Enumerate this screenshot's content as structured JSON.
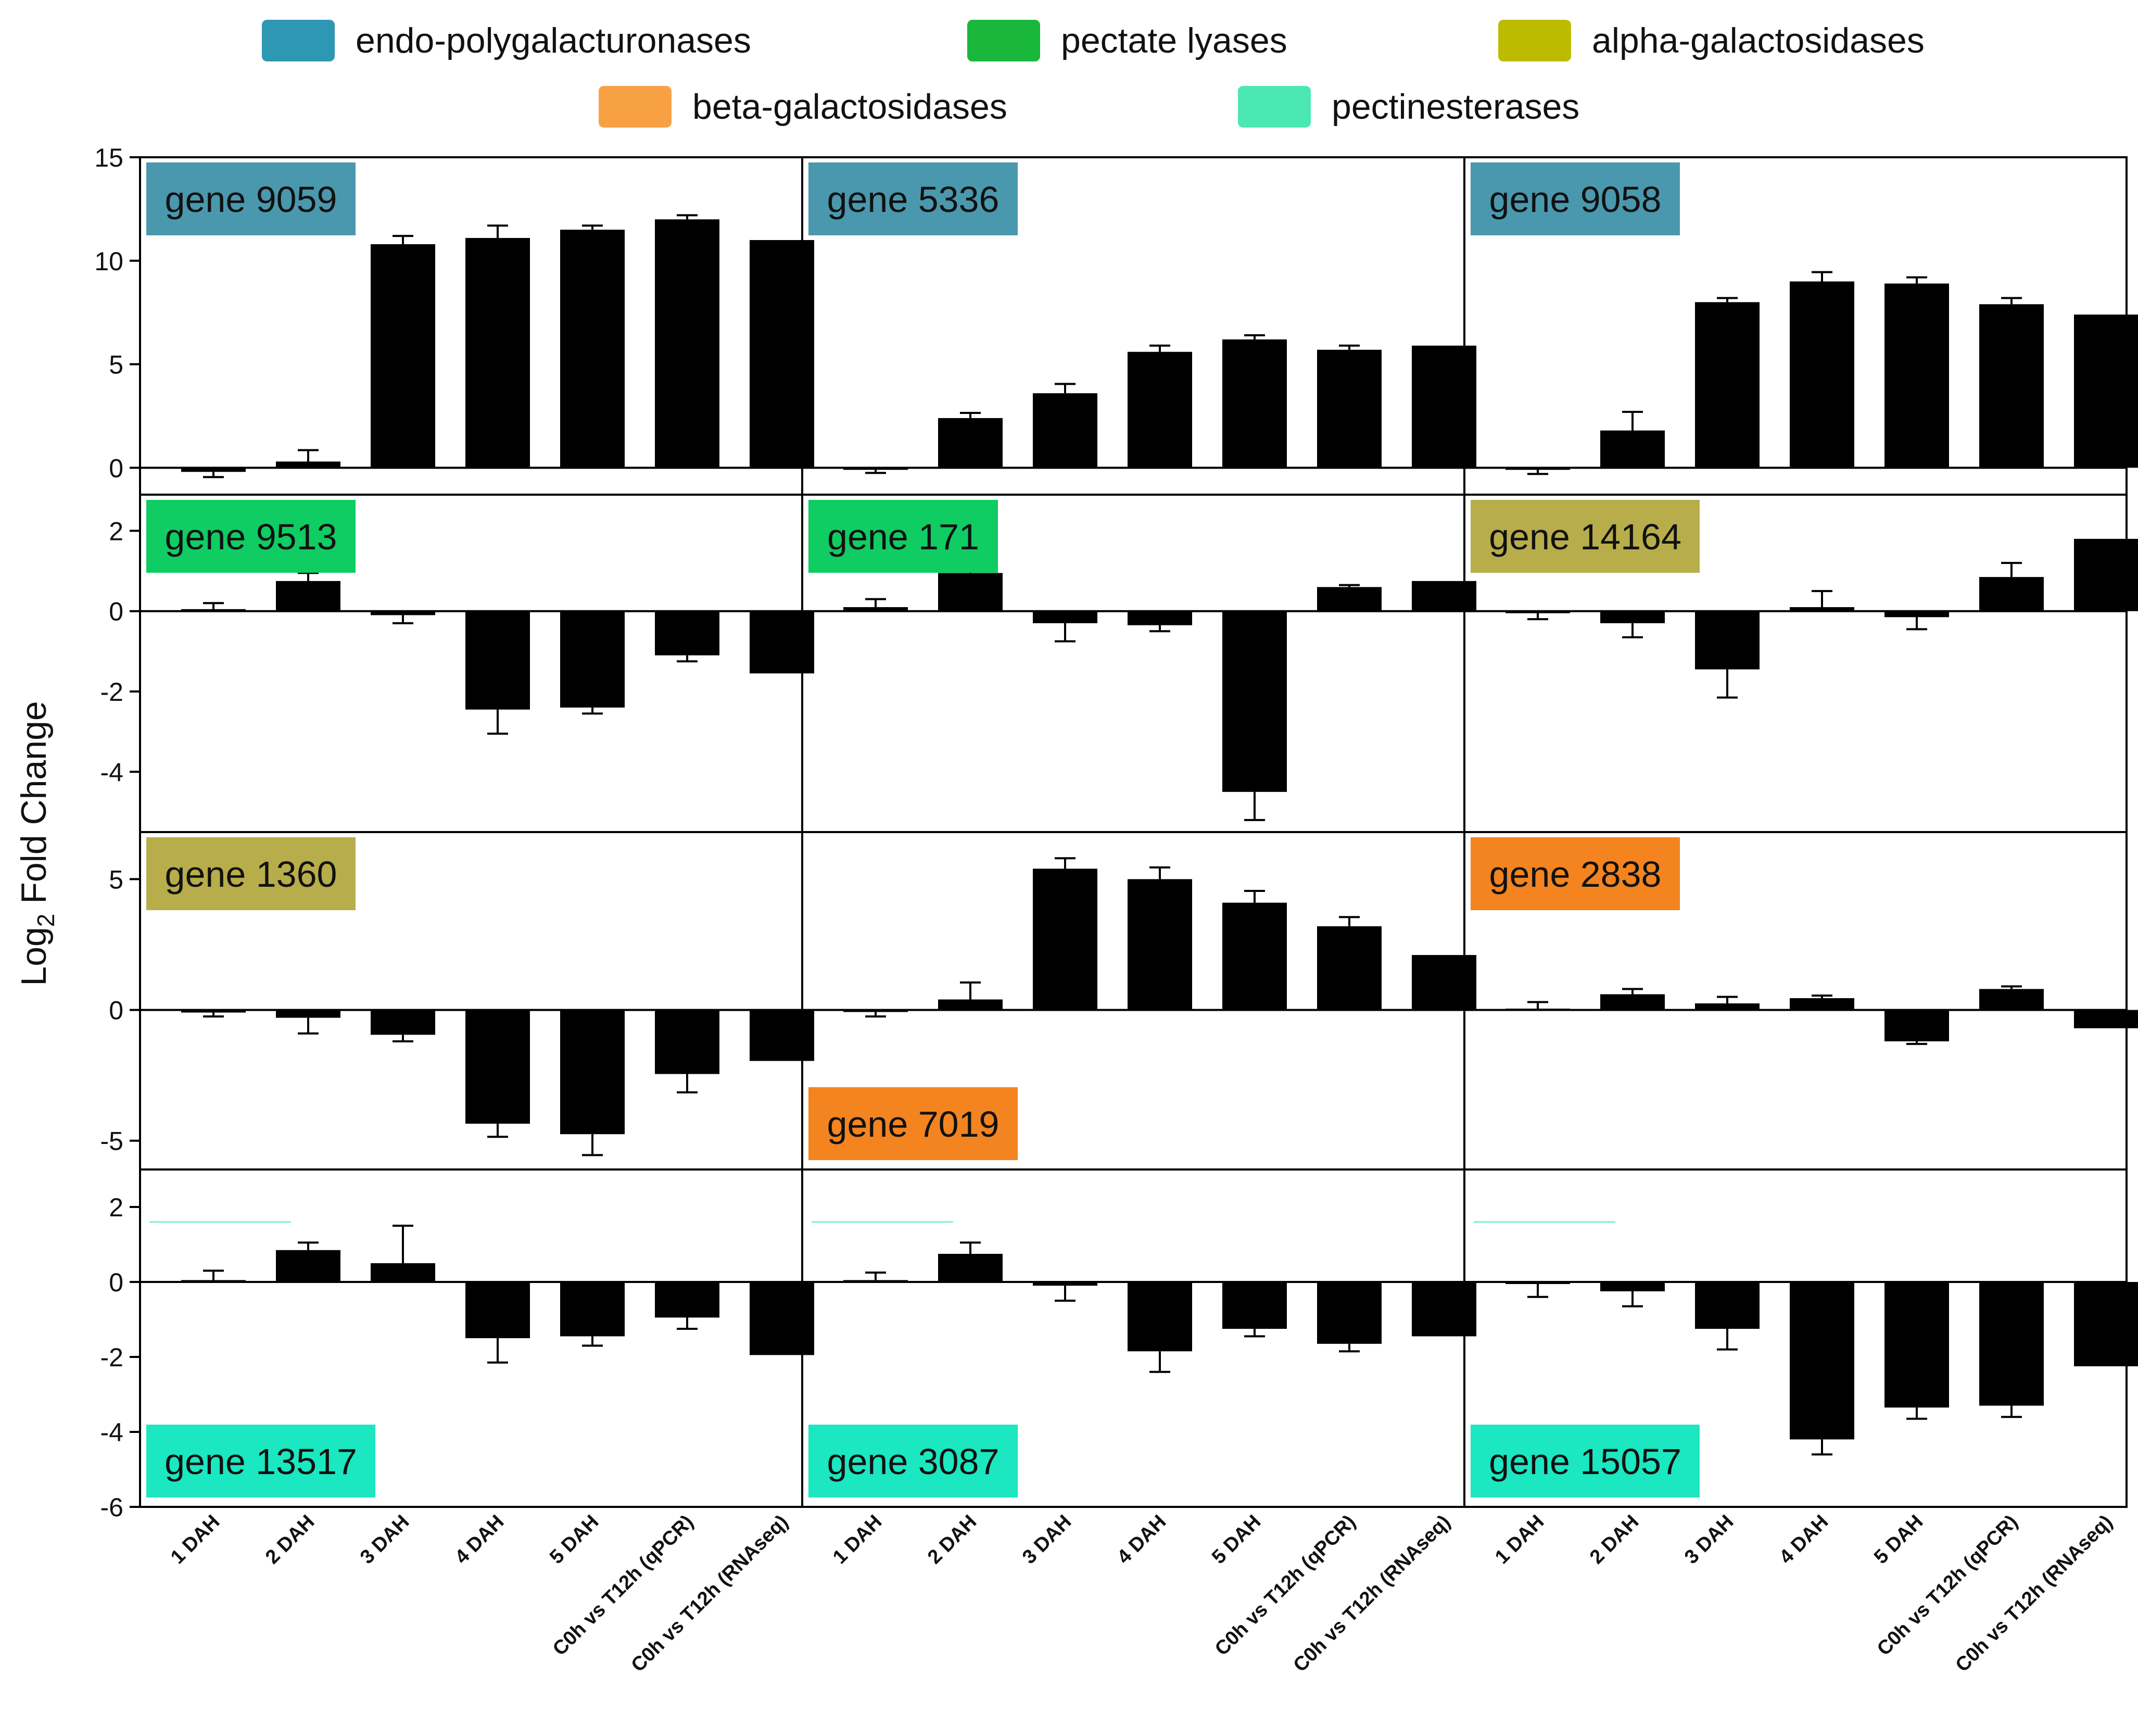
{
  "legend": [
    {
      "name": "endo-polygalacturonases",
      "color": "#2e97b4"
    },
    {
      "name": "pectate lyases",
      "color": "#19b83c"
    },
    {
      "name": "alpha-galactosidases",
      "color": "#bdbb00"
    },
    {
      "name": "beta-galactosidases",
      "color": "#f7a144"
    },
    {
      "name": "pectinesterases",
      "color": "#4be8b4"
    }
  ],
  "ylabel_main": "Log",
  "ylabel_sub": "2",
  "ylabel_rest": " Fold Change",
  "chart_data": {
    "type": "bar",
    "ylabel": "Log2 Fold Change",
    "categories": [
      "1 DAH",
      "2 DAH",
      "3 DAH",
      "4 DAH",
      "5 DAH",
      "C0h vs T12h (qPCR)",
      "C0h vs T12h (RNAseq)"
    ],
    "rows": [
      {
        "ylim": [
          -1.3,
          15
        ],
        "ticks": [
          0,
          5,
          10,
          15
        ],
        "tick_labels": [
          "0",
          "5",
          "10",
          "15"
        ]
      },
      {
        "ylim": [
          -5.5,
          2.9
        ],
        "ticks": [
          -4,
          -2,
          0,
          2
        ],
        "tick_labels": [
          "-4",
          "-2",
          "0",
          "2"
        ]
      },
      {
        "ylim": [
          -6.1,
          6.8
        ],
        "ticks": [
          -5,
          0,
          5
        ],
        "tick_labels": [
          "-5",
          "0",
          "5"
        ]
      },
      {
        "ylim": [
          -6,
          3
        ],
        "ticks": [
          -6,
          -4,
          -2,
          0,
          2
        ],
        "tick_labels": [
          "-6",
          "-4",
          "-2",
          "0",
          "2"
        ]
      }
    ],
    "panels": [
      {
        "gene": "gene 9059",
        "family": "endo-polygalacturonases",
        "color": "#4a98ad",
        "label_pos": "top",
        "values": [
          -0.2,
          0.3,
          10.8,
          11.1,
          11.5,
          12.0,
          11.0
        ],
        "errors": [
          0.25,
          0.55,
          0.4,
          0.6,
          0.2,
          0.2,
          0
        ]
      },
      {
        "gene": "gene 5336",
        "family": "endo-polygalacturonases",
        "color": "#4a98ad",
        "label_pos": "top",
        "values": [
          -0.05,
          2.4,
          3.6,
          5.6,
          6.2,
          5.7,
          5.9
        ],
        "errors": [
          0.2,
          0.25,
          0.45,
          0.3,
          0.2,
          0.2,
          0
        ]
      },
      {
        "gene": "gene 9058",
        "family": "endo-polygalacturonases",
        "color": "#4a98ad",
        "label_pos": "top",
        "values": [
          -0.05,
          1.8,
          8.0,
          9.0,
          8.9,
          7.9,
          7.4
        ],
        "errors": [
          0.25,
          0.9,
          0.2,
          0.45,
          0.3,
          0.3,
          0
        ]
      },
      {
        "gene": "gene 9513",
        "family": "pectate lyases",
        "color": "#0fcc63",
        "label_pos": "top",
        "values": [
          0.05,
          0.75,
          -0.1,
          -2.45,
          -2.4,
          -1.1,
          -1.55
        ],
        "errors": [
          0.15,
          0.2,
          0.2,
          0.6,
          0.15,
          0.15,
          0
        ]
      },
      {
        "gene": "gene 171",
        "family": "pectate lyases",
        "color": "#0fcc63",
        "label_pos": "top",
        "values": [
          0.1,
          0.95,
          -0.3,
          -0.35,
          -4.5,
          0.6,
          0.75
        ],
        "errors": [
          0.2,
          0.05,
          0.45,
          0.15,
          0.7,
          0.05,
          0
        ]
      },
      {
        "gene": "gene 14164",
        "family": "alpha-galactosidases",
        "color": "#b7ad4a",
        "label_pos": "top",
        "values": [
          -0.05,
          -0.3,
          -1.45,
          0.1,
          -0.15,
          0.85,
          1.8
        ],
        "errors": [
          0.15,
          0.35,
          0.7,
          0.4,
          0.3,
          0.35,
          0
        ]
      },
      {
        "gene": "gene 1360",
        "family": "alpha-galactosidases",
        "color": "#b7ad4a",
        "label_pos": "top",
        "values": [
          -0.1,
          -0.3,
          -0.95,
          -4.35,
          -4.75,
          -2.45,
          -1.95
        ],
        "errors": [
          0.15,
          0.6,
          0.25,
          0.5,
          0.8,
          0.7,
          0
        ]
      },
      {
        "gene": "gene 7019",
        "family": "beta-galactosidases",
        "color": "#f38420",
        "label_pos": "bottom",
        "values": [
          -0.05,
          0.4,
          5.4,
          5.0,
          4.1,
          3.2,
          2.1
        ],
        "errors": [
          0.2,
          0.65,
          0.4,
          0.45,
          0.45,
          0.35,
          0
        ]
      },
      {
        "gene": "gene 2838",
        "family": "beta-galactosidases",
        "color": "#f38420",
        "label_pos": "top",
        "values": [
          0.05,
          0.6,
          0.25,
          0.45,
          -1.2,
          0.8,
          -0.7
        ],
        "errors": [
          0.25,
          0.2,
          0.25,
          0.1,
          0.1,
          0.1,
          0
        ]
      },
      {
        "gene": "gene 13517",
        "family": "pectinesterases",
        "color": "#1be7c0",
        "label_pos": "bottom",
        "values": [
          0.05,
          0.85,
          0.5,
          -1.5,
          -1.45,
          -0.95,
          -1.95
        ],
        "errors": [
          0.25,
          0.2,
          1.0,
          0.65,
          0.25,
          0.3,
          0
        ]
      },
      {
        "gene": "gene 3087",
        "family": "pectinesterases",
        "color": "#1be7c0",
        "label_pos": "bottom",
        "values": [
          0.05,
          0.75,
          -0.1,
          -1.85,
          -1.25,
          -1.65,
          -1.45
        ],
        "errors": [
          0.2,
          0.3,
          0.4,
          0.55,
          0.2,
          0.2,
          0
        ]
      },
      {
        "gene": "gene 15057",
        "family": "pectinesterases",
        "color": "#1be7c0",
        "label_pos": "bottom",
        "values": [
          -0.05,
          -0.25,
          -1.25,
          -4.2,
          -3.35,
          -3.3,
          -2.25
        ],
        "errors": [
          0.35,
          0.4,
          0.55,
          0.4,
          0.3,
          0.3,
          0
        ]
      }
    ]
  }
}
